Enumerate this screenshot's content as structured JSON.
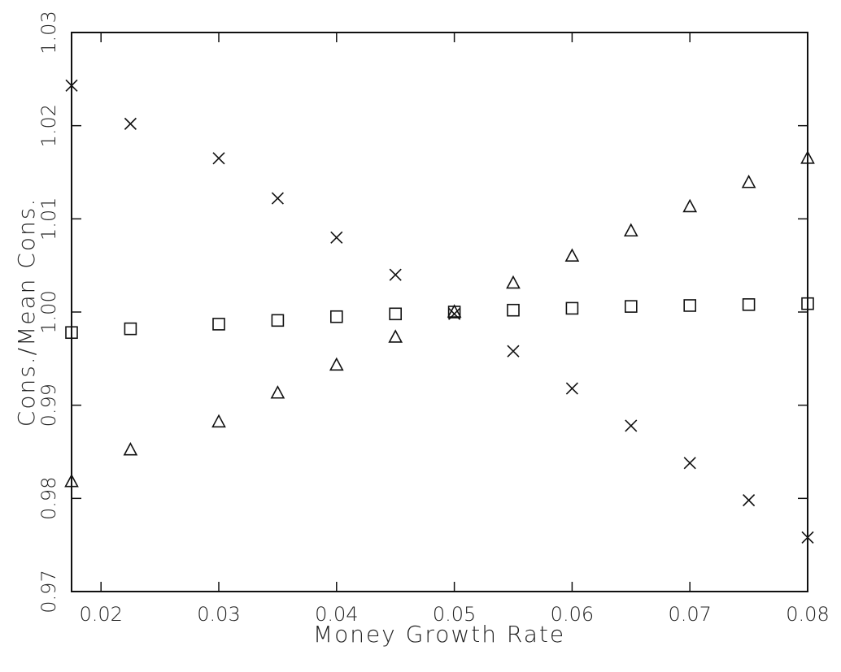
{
  "chart_data": {
    "type": "scatter",
    "title": "",
    "xlabel": "Money Growth Rate",
    "ylabel": "Cons./Mean Cons.",
    "xlim": [
      0.0175,
      0.08
    ],
    "ylim": [
      0.97,
      1.03
    ],
    "x_ticks": [
      0.02,
      0.03,
      0.04,
      0.05,
      0.06,
      0.07,
      0.08
    ],
    "x_tick_labels": [
      "0.02",
      "0.03",
      "0.04",
      "0.05",
      "0.06",
      "0.07",
      "0.08"
    ],
    "y_ticks": [
      0.97,
      0.98,
      0.99,
      1.0,
      1.01,
      1.02,
      1.03
    ],
    "y_tick_labels": [
      "0.97",
      "0.98",
      "0.99",
      "1.00",
      "1.01",
      "1.02",
      "1.03"
    ],
    "grid": false,
    "x": [
      0.0175,
      0.0225,
      0.03,
      0.035,
      0.04,
      0.045,
      0.05,
      0.055,
      0.06,
      0.065,
      0.07,
      0.075,
      0.08
    ],
    "series": [
      {
        "marker": "cross",
        "values": [
          1.0243,
          1.0202,
          1.0165,
          1.0122,
          1.008,
          1.004,
          0.9998,
          0.9958,
          0.9918,
          0.9878,
          0.9838,
          0.9798,
          0.9758
        ]
      },
      {
        "marker": "square",
        "values": [
          0.9978,
          0.9982,
          0.9987,
          0.9991,
          0.9995,
          0.9998,
          1.0,
          1.0002,
          1.0004,
          1.0006,
          1.0007,
          1.0008,
          1.0009
        ]
      },
      {
        "marker": "triangle",
        "values": [
          0.9818,
          0.9852,
          0.9882,
          0.9913,
          0.9943,
          0.9973,
          1.0,
          1.0031,
          1.006,
          1.0087,
          1.0113,
          1.0139,
          1.0165
        ]
      }
    ]
  }
}
